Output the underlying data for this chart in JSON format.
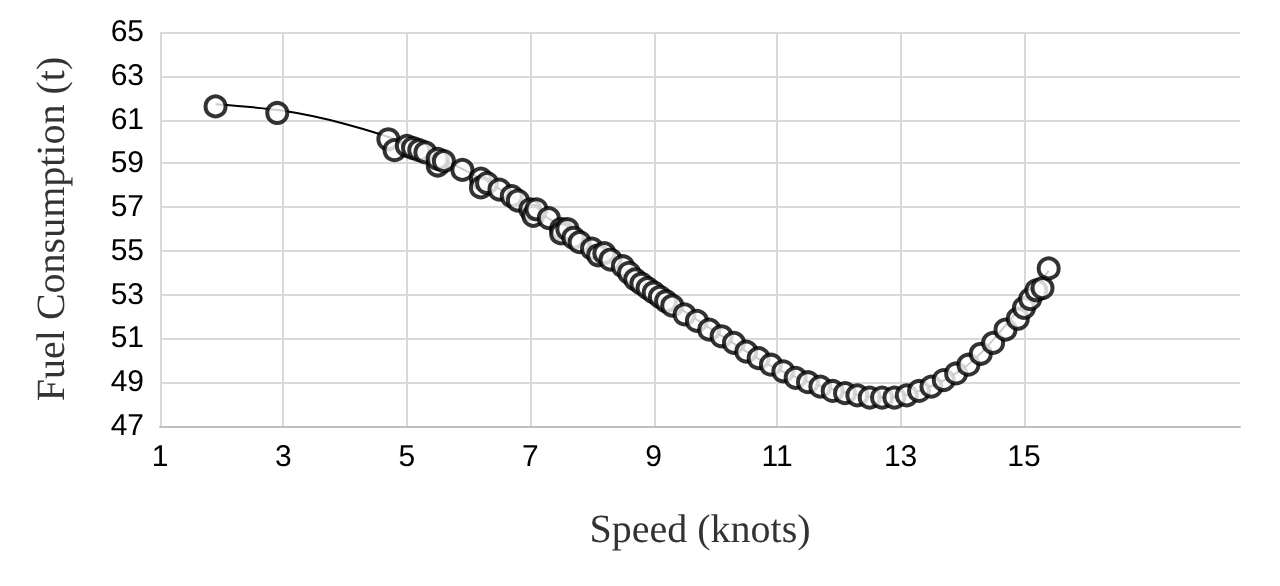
{
  "chart_data": {
    "type": "scatter",
    "xlabel": "Speed (knots)",
    "ylabel": "Fuel Consumption (t)",
    "xlim": [
      1,
      18.5
    ],
    "xticks": [
      1,
      3,
      5,
      7,
      9,
      11,
      13,
      15
    ],
    "ylim": [
      47,
      65
    ],
    "yticks": [
      47,
      49,
      51,
      53,
      55,
      57,
      59,
      61,
      63,
      65
    ],
    "grid": true,
    "series": [
      {
        "color": "#000000",
        "marker": "circle",
        "x": [
          1.9,
          2.9,
          4.7,
          4.8,
          5.0,
          5.1,
          5.2,
          5.3,
          5.5,
          5.5,
          5.6,
          5.9,
          6.2,
          6.2,
          6.3,
          6.5,
          6.7,
          6.8,
          7.0,
          7.05,
          7.1,
          7.3,
          7.5,
          7.5,
          7.6,
          7.7,
          7.8,
          8.0,
          8.1,
          8.2,
          8.3,
          8.5,
          8.6,
          8.7,
          8.8,
          8.9,
          9.0,
          9.1,
          9.2,
          9.3,
          9.5,
          9.7,
          9.9,
          10.1,
          10.3,
          10.5,
          10.7,
          10.9,
          11.1,
          11.3,
          11.5,
          11.7,
          11.9,
          12.1,
          12.3,
          12.5,
          12.7,
          12.9,
          13.1,
          13.3,
          13.5,
          13.7,
          13.9,
          14.1,
          14.3,
          14.5,
          14.7,
          14.9,
          15.0,
          15.1,
          15.2,
          15.3,
          15.4
        ],
        "values": [
          61.6,
          61.3,
          60.1,
          59.6,
          59.8,
          59.7,
          59.6,
          59.5,
          58.9,
          59.2,
          59.1,
          58.7,
          58.3,
          57.9,
          58.1,
          57.8,
          57.5,
          57.3,
          56.9,
          56.6,
          56.9,
          56.5,
          56.0,
          55.8,
          56.0,
          55.6,
          55.4,
          55.1,
          54.8,
          54.9,
          54.6,
          54.3,
          54.0,
          53.7,
          53.5,
          53.3,
          53.1,
          52.9,
          52.7,
          52.5,
          52.1,
          51.8,
          51.4,
          51.1,
          50.8,
          50.4,
          50.1,
          49.8,
          49.5,
          49.2,
          49.0,
          48.8,
          48.6,
          48.5,
          48.4,
          48.3,
          48.3,
          48.3,
          48.4,
          48.6,
          48.8,
          49.1,
          49.4,
          49.8,
          50.3,
          50.8,
          51.4,
          51.9,
          52.4,
          52.8,
          53.2,
          53.3,
          54.2
        ]
      },
      {
        "type": "line",
        "color": "#000000",
        "x": [
          1.9,
          3,
          4,
          5,
          6,
          7,
          8,
          9,
          10,
          11,
          12,
          12.8,
          14,
          15,
          15.4
        ],
        "values": [
          61.7,
          61.4,
          60.8,
          59.9,
          58.6,
          57,
          55.2,
          53.2,
          51.3,
          49.6,
          48.6,
          48.3,
          49.6,
          52.6,
          54.1
        ]
      }
    ]
  }
}
